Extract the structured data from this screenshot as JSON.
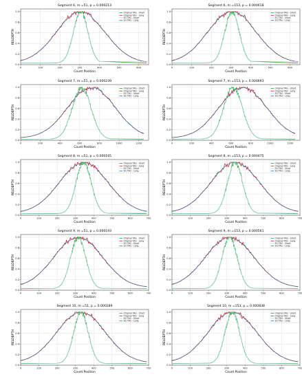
{
  "figure": {
    "axis": {
      "xlabel": "Count Position",
      "ylabel": "RELDEPTH"
    },
    "legend_labels": [
      "Original TAG - Short",
      "Original TAG - Long",
      "SG TAG - Short",
      "SG TAG - Long"
    ],
    "legend_placement": "top-right",
    "grid": true,
    "colors": {
      "orig_short": "#2ca02c",
      "orig_long": "#d62728",
      "sg_short": "#9edae5",
      "sg_long": "#1f77b4"
    }
  },
  "chart_data": [
    {
      "type": "line",
      "title": "Segment 6,  m =51, p = 0.000213",
      "xlim": [
        0,
        650
      ],
      "ylim": [
        0,
        1.05
      ],
      "xticks": [
        0,
        100,
        200,
        300,
        400,
        500,
        600
      ],
      "yticks": [
        0.0,
        0.2,
        0.4,
        0.6,
        0.8,
        1.0
      ],
      "short": {
        "start": 160,
        "end": 400,
        "peak": 305,
        "floor": 0.03
      },
      "long": {
        "start": 0,
        "end": 640,
        "peak": 305,
        "tail": 0.03
      },
      "series": [
        {
          "name": "Original TAG - Short"
        },
        {
          "name": "Original TAG - Long"
        },
        {
          "name": "SG TAG - Short"
        },
        {
          "name": "SG TAG - Long"
        }
      ]
    },
    {
      "type": "line",
      "title": "Segment 6,  m =153, p = 0.000618",
      "xlim": [
        0,
        650
      ],
      "ylim": [
        0,
        1.05
      ],
      "xticks": [
        0,
        100,
        200,
        300,
        400,
        500,
        600
      ],
      "yticks": [
        0.0,
        0.2,
        0.4,
        0.6,
        0.8,
        1.0
      ],
      "short": {
        "start": 160,
        "end": 400,
        "peak": 305,
        "floor": 0.03
      },
      "long": {
        "start": 0,
        "end": 640,
        "peak": 305,
        "tail": 0.03
      },
      "series": [
        {
          "name": "Original TAG - Short"
        },
        {
          "name": "Original TAG - Long"
        },
        {
          "name": "SG TAG - Short"
        },
        {
          "name": "SG TAG - Long"
        }
      ]
    },
    {
      "type": "line",
      "title": "Segment 7,  m =51, p = 0.000239",
      "xlim": [
        0,
        1300
      ],
      "ylim": [
        0,
        1.05
      ],
      "xticks": [
        0,
        200,
        400,
        600,
        800,
        1000,
        1200
      ],
      "yticks": [
        0.0,
        0.2,
        0.4,
        0.6,
        0.8,
        1.0
      ],
      "short": {
        "start": 300,
        "end": 920,
        "peak": 620,
        "floor": 0.02
      },
      "long": {
        "start": 0,
        "end": 1250,
        "peak": 720,
        "tail": 0.04
      },
      "series": [
        {
          "name": "Original TAG - Short"
        },
        {
          "name": "Original TAG - Long"
        },
        {
          "name": "SG TAG - Short"
        },
        {
          "name": "SG TAG - Long"
        }
      ]
    },
    {
      "type": "line",
      "title": "Segment 7,  m =153, p = 0.000693",
      "xlim": [
        0,
        1300
      ],
      "ylim": [
        0,
        1.05
      ],
      "xticks": [
        0,
        200,
        400,
        600,
        800,
        1000,
        1200
      ],
      "yticks": [
        0.0,
        0.2,
        0.4,
        0.6,
        0.8,
        1.0
      ],
      "short": {
        "start": 300,
        "end": 920,
        "peak": 620,
        "floor": 0.02
      },
      "long": {
        "start": 0,
        "end": 1250,
        "peak": 720,
        "tail": 0.04
      },
      "series": [
        {
          "name": "Original TAG - Short"
        },
        {
          "name": "Original TAG - Long"
        },
        {
          "name": "SG TAG - Short"
        },
        {
          "name": "SG TAG - Long"
        }
      ]
    },
    {
      "type": "line",
      "title": "Segment 8,  m =51, p = 0.000165",
      "xlim": [
        0,
        700
      ],
      "ylim": [
        0,
        1.05
      ],
      "xticks": [
        0,
        100,
        200,
        300,
        400,
        500,
        600,
        700
      ],
      "yticks": [
        0.0,
        0.2,
        0.4,
        0.6,
        0.8,
        1.0
      ],
      "short": {
        "start": 200,
        "end": 470,
        "peak": 345,
        "floor": 0.03
      },
      "long": {
        "start": 0,
        "end": 690,
        "peak": 345,
        "tail": 0.04
      },
      "series": [
        {
          "name": "Original TAG - Short"
        },
        {
          "name": "Original TAG - Long"
        },
        {
          "name": "SG TAG - Short"
        },
        {
          "name": "SG TAG - Long"
        }
      ]
    },
    {
      "type": "line",
      "title": "Segment 8,  m =153, p = 0.000475",
      "xlim": [
        0,
        700
      ],
      "ylim": [
        0,
        1.05
      ],
      "xticks": [
        0,
        100,
        200,
        300,
        400,
        500,
        600,
        700
      ],
      "yticks": [
        0.0,
        0.2,
        0.4,
        0.6,
        0.8,
        1.0
      ],
      "short": {
        "start": 200,
        "end": 470,
        "peak": 345,
        "floor": 0.03
      },
      "long": {
        "start": 0,
        "end": 690,
        "peak": 345,
        "tail": 0.04
      },
      "series": [
        {
          "name": "Original TAG - Short"
        },
        {
          "name": "Original TAG - Long"
        },
        {
          "name": "SG TAG - Short"
        },
        {
          "name": "SG TAG - Long"
        }
      ]
    },
    {
      "type": "line",
      "title": "Segment 9,  m =51, p = 0.000193",
      "xlim": [
        0,
        700
      ],
      "ylim": [
        0,
        1.05
      ],
      "xticks": [
        0,
        100,
        200,
        300,
        400,
        500,
        600,
        700
      ],
      "yticks": [
        0.0,
        0.2,
        0.4,
        0.6,
        0.8,
        1.0
      ],
      "short": {
        "start": 180,
        "end": 450,
        "peak": 315,
        "floor": 0.03
      },
      "long": {
        "start": 0,
        "end": 690,
        "peak": 315,
        "tail": 0.05
      },
      "series": [
        {
          "name": "Original TAG - Short"
        },
        {
          "name": "Original TAG - Long"
        },
        {
          "name": "SG TAG - Short"
        },
        {
          "name": "SG TAG - Long"
        }
      ]
    },
    {
      "type": "line",
      "title": "Segment 9,  m =153, p = 0.000561",
      "xlim": [
        0,
        700
      ],
      "ylim": [
        0,
        1.05
      ],
      "xticks": [
        0,
        100,
        200,
        300,
        400,
        500,
        600,
        700
      ],
      "yticks": [
        0.0,
        0.2,
        0.4,
        0.6,
        0.8,
        1.0
      ],
      "short": {
        "start": 180,
        "end": 450,
        "peak": 315,
        "floor": 0.03
      },
      "long": {
        "start": 0,
        "end": 690,
        "peak": 315,
        "tail": 0.05
      },
      "series": [
        {
          "name": "Original TAG - Short"
        },
        {
          "name": "Original TAG - Long"
        },
        {
          "name": "SG TAG - Short"
        },
        {
          "name": "SG TAG - Long"
        }
      ]
    },
    {
      "type": "line",
      "title": "Segment 10,  m =51, p = 0.000289",
      "xlim": [
        0,
        700
      ],
      "ylim": [
        0,
        1.05
      ],
      "xticks": [
        0,
        100,
        200,
        300,
        400,
        500,
        600,
        700
      ],
      "yticks": [
        0.0,
        0.2,
        0.4,
        0.6,
        0.8,
        1.0
      ],
      "short": {
        "start": 200,
        "end": 460,
        "peak": 330,
        "floor": 0.03
      },
      "long": {
        "start": 0,
        "end": 690,
        "peak": 330,
        "tail": 0.04
      },
      "series": [
        {
          "name": "Original TAG - Short"
        },
        {
          "name": "Original TAG - Long"
        },
        {
          "name": "SG TAG - Short"
        },
        {
          "name": "SG TAG - Long"
        }
      ]
    },
    {
      "type": "line",
      "title": "Segment 10,  m =153, p = 0.000838",
      "xlim": [
        0,
        700
      ],
      "ylim": [
        0,
        1.05
      ],
      "xticks": [
        0,
        100,
        200,
        300,
        400,
        500,
        600,
        700
      ],
      "yticks": [
        0.0,
        0.2,
        0.4,
        0.6,
        0.8,
        1.0
      ],
      "short": {
        "start": 200,
        "end": 460,
        "peak": 330,
        "floor": 0.03
      },
      "long": {
        "start": 0,
        "end": 690,
        "peak": 330,
        "tail": 0.04
      },
      "series": [
        {
          "name": "Original TAG - Short"
        },
        {
          "name": "Original TAG - Long"
        },
        {
          "name": "SG TAG - Short"
        },
        {
          "name": "SG TAG - Long"
        }
      ]
    }
  ]
}
